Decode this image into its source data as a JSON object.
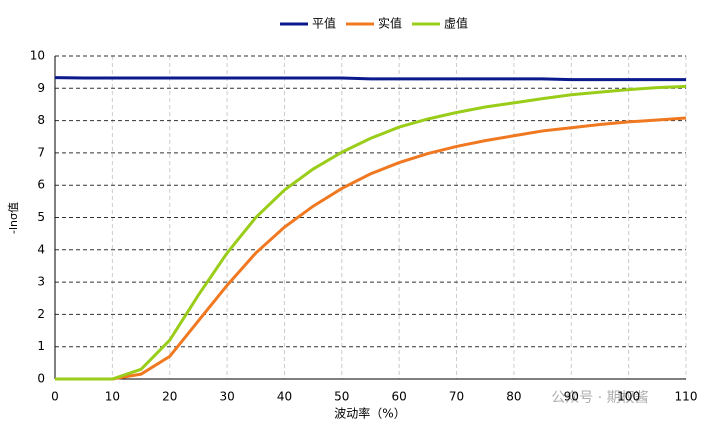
{
  "chart_data": {
    "type": "line",
    "x": [
      0,
      5,
      10,
      15,
      20,
      25,
      30,
      35,
      40,
      45,
      50,
      55,
      60,
      65,
      70,
      75,
      80,
      85,
      90,
      95,
      100,
      105,
      110
    ],
    "series": [
      {
        "name": "平值",
        "color": "#0a1a8c",
        "values": [
          9.33,
          9.32,
          9.32,
          9.32,
          9.32,
          9.32,
          9.32,
          9.32,
          9.32,
          9.32,
          9.32,
          9.29,
          9.29,
          9.29,
          9.29,
          9.29,
          9.29,
          9.29,
          9.27,
          9.27,
          9.27,
          9.27,
          9.27
        ]
      },
      {
        "name": "实值",
        "color": "#f07820",
        "values": [
          0,
          0,
          0,
          0.15,
          0.7,
          1.8,
          2.9,
          3.9,
          4.7,
          5.35,
          5.9,
          6.35,
          6.7,
          6.98,
          7.2,
          7.38,
          7.53,
          7.68,
          7.78,
          7.88,
          7.96,
          8.02,
          8.08
        ]
      },
      {
        "name": "虚值",
        "color": "#9acd1a",
        "values": [
          0,
          0,
          0,
          0.3,
          1.2,
          2.6,
          3.9,
          5.0,
          5.85,
          6.5,
          7.02,
          7.45,
          7.8,
          8.05,
          8.25,
          8.42,
          8.55,
          8.68,
          8.8,
          8.88,
          8.96,
          9.02,
          9.06
        ]
      }
    ],
    "xlim": [
      0,
      110
    ],
    "xticks": [
      0,
      10,
      20,
      30,
      40,
      50,
      60,
      70,
      80,
      90,
      100,
      110
    ],
    "ylim": [
      0,
      10
    ],
    "yticks": [
      0,
      1,
      2,
      3,
      4,
      5,
      6,
      7,
      8,
      9,
      10
    ],
    "xlabel": "波动率（%）",
    "ylabel": "-lnσ值",
    "watermark": "公众号 · 期权酱",
    "grid": true
  }
}
